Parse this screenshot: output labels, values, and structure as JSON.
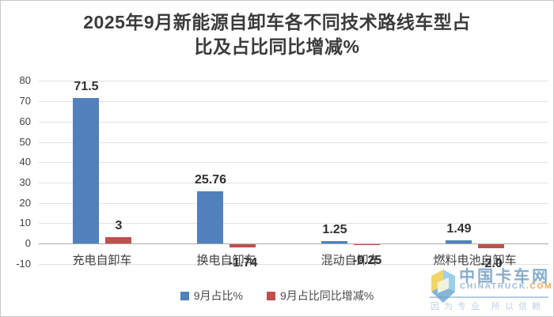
{
  "page": {
    "background": "#ffffff",
    "border_color": "#c9c9c9"
  },
  "title": {
    "text": "2025年9月新能源自卸车各不同技术路线车型占比及占比同比增减%",
    "lines": [
      "2025年9月新能源自卸车各不同技术路线车型占",
      "比及占比同比增减%"
    ]
  },
  "chart_data": {
    "type": "bar",
    "title": "2025年9月新能源自卸车各不同技术路线车型占比及占比同比增减%",
    "categories": [
      "充电自卸车",
      "换电自卸车",
      "混动自卸车",
      "燃料电池自卸车"
    ],
    "series": [
      {
        "name": "9月占比%",
        "color": "#5081bd",
        "values": [
          71.5,
          25.76,
          1.25,
          1.49
        ],
        "labels": [
          "71.5",
          "25.76",
          "1.25",
          "1.49"
        ]
      },
      {
        "name": "9月占比同比增减%",
        "color": "#be504b",
        "values": [
          3,
          -1.74,
          -0.25,
          -2.0
        ],
        "labels": [
          "3",
          "-1.74",
          "-0.25",
          "-2.0"
        ]
      }
    ],
    "xlabel": "",
    "ylabel": "",
    "ylim": [
      -10,
      80
    ],
    "yticks": [
      80,
      70,
      60,
      50,
      40,
      30,
      20,
      10,
      0,
      -10
    ],
    "grid": true,
    "legend_position": "bottom",
    "colors": {
      "gridline": "#e2e2e2",
      "zero_line": "#ababab",
      "label_text": "#303030"
    }
  },
  "watermark": {
    "cn": "中国卡车网",
    "en": "CHINATRUCK",
    "en_suffix": ".COM",
    "slogan": "因为专业 所以信赖",
    "logo_yellow": "#efc93f",
    "logo_blue": "#82c3e3"
  }
}
